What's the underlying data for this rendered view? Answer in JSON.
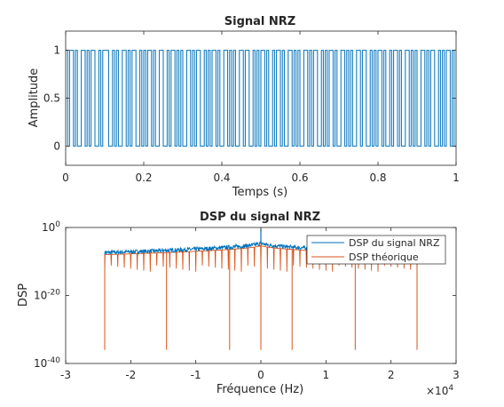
{
  "colors": {
    "signal": "#0072BD",
    "theory": "#D95319",
    "axis": "#262626",
    "background": "#ffffff"
  },
  "chart_data": [
    {
      "type": "line",
      "title": "Signal NRZ",
      "xlabel": "Temps (s)",
      "ylabel": "Amplitude",
      "xlim": [
        0,
        1
      ],
      "ylim": [
        -0.2,
        1.2
      ],
      "xticks": [
        0,
        0.2,
        0.4,
        0.6,
        0.8,
        1
      ],
      "xticklabels": [
        "0",
        "0.2",
        "0.4",
        "0.6",
        "0.8",
        "1"
      ],
      "yticks": [
        0,
        0.5,
        1
      ],
      "yticklabels": [
        "0",
        "0.5",
        "1"
      ],
      "grid": false,
      "series": [
        {
          "style": "step",
          "bits": [
            1,
            0,
            1,
            1,
            0,
            1,
            0,
            0,
            1,
            1,
            0,
            1,
            0,
            1,
            1,
            0,
            0,
            1,
            0,
            1,
            1,
            1,
            0,
            0,
            1,
            0,
            1,
            0,
            0,
            1,
            1,
            0,
            1,
            0,
            1,
            1,
            0,
            0,
            1,
            0,
            1,
            0,
            1,
            1,
            0,
            1,
            0,
            0,
            1,
            1,
            0,
            0,
            1,
            0,
            1,
            1,
            0,
            1,
            0,
            1,
            0,
            0,
            1,
            1,
            0,
            1,
            0,
            1,
            1,
            0,
            0,
            1,
            0,
            1,
            0,
            1,
            1,
            0,
            1,
            0,
            0,
            1,
            1,
            0,
            1,
            0,
            1,
            0,
            0,
            1,
            1,
            0,
            1,
            1,
            0,
            0,
            1,
            0,
            1,
            0,
            1,
            1,
            0,
            1,
            0,
            0,
            1,
            0,
            1,
            1,
            0,
            1,
            0,
            0,
            1,
            1,
            0,
            1,
            0,
            1,
            0,
            0,
            1,
            1,
            0,
            1,
            0,
            1,
            1,
            0,
            0,
            1,
            0,
            1,
            0,
            1,
            1,
            0,
            1,
            0,
            0,
            1,
            1,
            0,
            1,
            0,
            1,
            0,
            0,
            1,
            1,
            0,
            1,
            1,
            0,
            0,
            1,
            0,
            1,
            0,
            1,
            1,
            0,
            1,
            0,
            0,
            1,
            0,
            1,
            1,
            0,
            1,
            0,
            0,
            1,
            1,
            0,
            1,
            0,
            1,
            0,
            0,
            1,
            1,
            0,
            1,
            0,
            1,
            1,
            0,
            0,
            1,
            0,
            1,
            0,
            1,
            1,
            0,
            1,
            0
          ]
        }
      ]
    },
    {
      "type": "line",
      "title": "DSP du signal NRZ",
      "xlabel": "Fréquence (Hz)",
      "ylabel": "DSP",
      "xlim": [
        -30000,
        30000
      ],
      "ylim_log10": [
        -40,
        0
      ],
      "yscale": "log",
      "xticks": [
        -30000,
        -20000,
        -10000,
        0,
        10000,
        20000,
        30000
      ],
      "xticklabels": [
        "-3",
        "-2",
        "-1",
        "0",
        "1",
        "2",
        "3"
      ],
      "x_exponent_label": "×10",
      "x_exponent": "4",
      "yticks_log10": [
        -40,
        -20,
        0
      ],
      "ytick_base": "10",
      "ytick_exponents": [
        "-40",
        "-20",
        "0"
      ],
      "legend": "top-right",
      "grid": false,
      "series": [
        {
          "name": "DSP du signal NRZ",
          "f_range": [
            -24000,
            24000
          ],
          "level_edges_log10": -7.4,
          "level_near_zero_log10": -4.5,
          "peak_log10": -0.5
        },
        {
          "name": "DSP théorique",
          "f_range": [
            -24000,
            24000
          ],
          "level_edges_log10": -8.0,
          "level_near_zero_log10": -5.2,
          "peak_log10": -1.5,
          "notch_spacing_hz": 1000,
          "notch_depth_log10": -13,
          "deep_notch_hz": [
            -24000,
            -14500,
            -4800,
            0,
            4800,
            14500,
            24000
          ],
          "deep_notch_log10": -36
        }
      ]
    }
  ]
}
